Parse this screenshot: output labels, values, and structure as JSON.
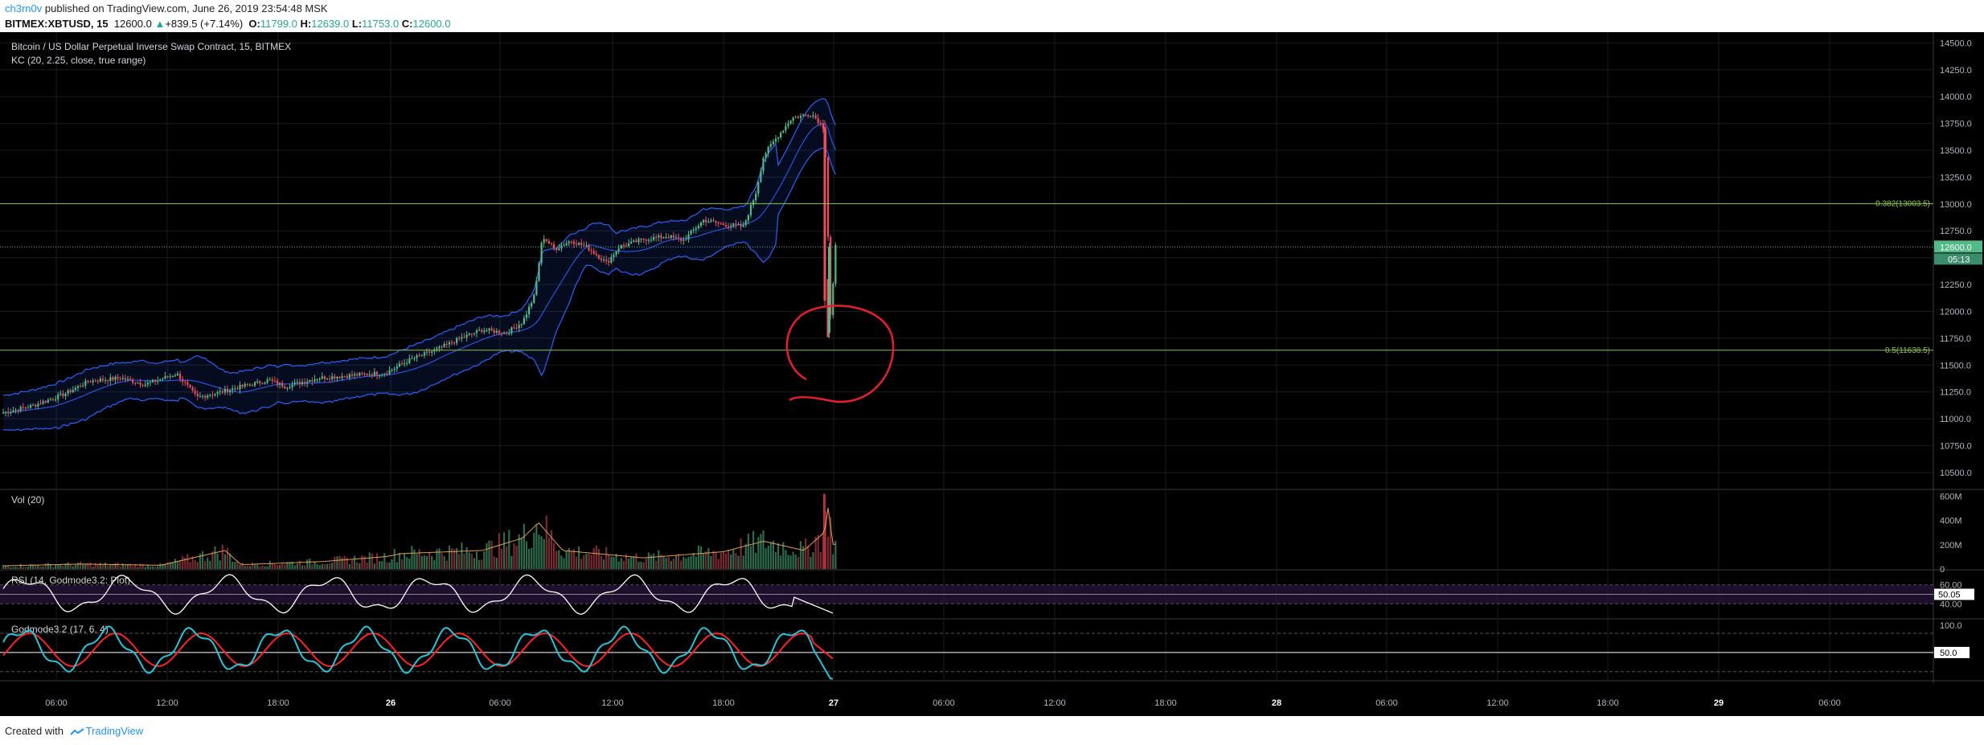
{
  "header": {
    "author": "ch3rn0v",
    "published": "published on TradingView.com, June 26, 2019 23:54:48 MSK"
  },
  "symbol_line": {
    "symbol": "BITMEX:XBTUSD, 15",
    "price": "12600.0",
    "change": "+839.5 (+7.14%)",
    "o_label": "O:",
    "o": "11799.0",
    "h_label": "H:",
    "h": "12639.0",
    "l_label": "L:",
    "l": "11753.0",
    "c_label": "C:",
    "c": "12600.0"
  },
  "footer": {
    "created_with": "Created with",
    "brand": "TradingView"
  },
  "colors": {
    "background": "#000000",
    "grid": "#1c1c1c",
    "up": "#53b987",
    "down": "#eb4d5c",
    "channel": "#2962ff",
    "fib": "#8bc34a",
    "annotation": "#e81e2e",
    "rsi": "#ffffff",
    "godmode_fast": "#26c6da",
    "godmode_slow": "#ff2222"
  },
  "chart_data": [
    {
      "type": "candlestick",
      "title": "Bitcoin / US Dollar Perpetual Inverse Swap Contract, 15, BITMEX",
      "indicator": "KC (20, 2.25, close, true range)",
      "x_ticks": [
        "06:00",
        "12:00",
        "18:00",
        "26",
        "06:00",
        "12:00",
        "18:00",
        "27",
        "06:00",
        "12:00",
        "18:00",
        "28",
        "06:00",
        "12:00",
        "18:00",
        "29",
        "06:00"
      ],
      "y_ticks": [
        "14500.0",
        "14250.0",
        "14000.0",
        "13750.0",
        "13500.0",
        "13250.0",
        "13000.0",
        "12750.0",
        "12500.0",
        "12250.0",
        "12000.0",
        "11750.0",
        "11500.0",
        "11250.0",
        "11000.0",
        "10750.0",
        "10500.0"
      ],
      "ylim": [
        10350,
        14600
      ],
      "last_price_label": "12600.0",
      "countdown_label": "05:13",
      "fib_levels": [
        {
          "label": "0.382(13003.5)",
          "value": 13003.5
        },
        {
          "label": "0.5(11638.5)",
          "value": 11638.5
        }
      ],
      "close_path": [
        [
          0,
          11050
        ],
        [
          40,
          11120
        ],
        [
          80,
          11230
        ],
        [
          110,
          11350
        ],
        [
          150,
          11380
        ],
        [
          180,
          11320
        ],
        [
          220,
          11420
        ],
        [
          245,
          11200
        ],
        [
          275,
          11250
        ],
        [
          300,
          11300
        ],
        [
          335,
          11360
        ],
        [
          355,
          11300
        ],
        [
          370,
          11330
        ],
        [
          395,
          11380
        ],
        [
          430,
          11400
        ],
        [
          480,
          11430
        ],
        [
          510,
          11550
        ],
        [
          545,
          11650
        ],
        [
          570,
          11740
        ],
        [
          600,
          11830
        ],
        [
          630,
          11800
        ],
        [
          650,
          11900
        ],
        [
          665,
          12150
        ],
        [
          675,
          12700
        ],
        [
          690,
          12580
        ],
        [
          710,
          12660
        ],
        [
          730,
          12600
        ],
        [
          755,
          12450
        ],
        [
          770,
          12600
        ],
        [
          800,
          12670
        ],
        [
          830,
          12700
        ],
        [
          850,
          12660
        ],
        [
          875,
          12850
        ],
        [
          900,
          12810
        ],
        [
          925,
          12790
        ],
        [
          940,
          13100
        ],
        [
          950,
          13450
        ],
        [
          960,
          13560
        ],
        [
          985,
          13800
        ],
        [
          1010,
          13840
        ],
        [
          1026,
          13700
        ],
        [
          1028,
          13200
        ],
        [
          1034,
          11780
        ],
        [
          1038,
          12600
        ]
      ],
      "volume_path": [
        [
          0,
          0.05
        ],
        [
          100,
          0.08
        ],
        [
          200,
          0.06
        ],
        [
          280,
          0.3
        ],
        [
          300,
          0.07
        ],
        [
          400,
          0.12
        ],
        [
          480,
          0.2
        ],
        [
          500,
          0.25
        ],
        [
          600,
          0.3
        ],
        [
          650,
          0.5
        ],
        [
          670,
          0.75
        ],
        [
          700,
          0.3
        ],
        [
          800,
          0.18
        ],
        [
          900,
          0.28
        ],
        [
          950,
          0.45
        ],
        [
          1000,
          0.3
        ],
        [
          1026,
          0.6
        ],
        [
          1030,
          1.0
        ],
        [
          1036,
          0.4
        ]
      ]
    },
    {
      "type": "bar",
      "title": "Vol (20)",
      "y_ticks": [
        "600M",
        "400M",
        "200M",
        "0"
      ],
      "ylim": [
        0,
        650
      ]
    },
    {
      "type": "line",
      "title": "RSI (14, Godmode3.2: Plot)",
      "y_ticks": [
        "60.00",
        "40.00"
      ],
      "current_label": "50.05",
      "ylim": [
        25,
        75
      ]
    },
    {
      "type": "line",
      "title": "Godmode3.2 (17, 6, 4)",
      "y_ticks": [
        "100.0"
      ],
      "current_label": "50.0",
      "ylim": [
        0,
        110
      ]
    }
  ]
}
